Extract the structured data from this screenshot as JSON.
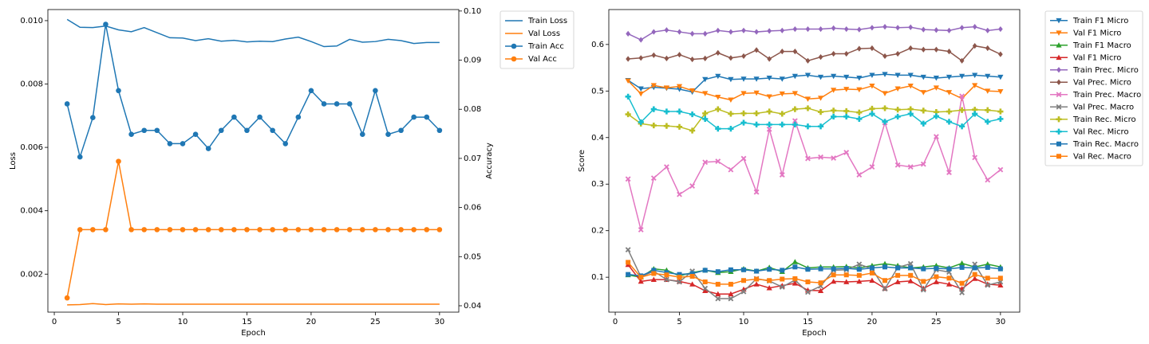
{
  "chart_data": [
    {
      "type": "line",
      "x": [
        1,
        2,
        3,
        4,
        5,
        6,
        7,
        8,
        9,
        10,
        11,
        12,
        13,
        14,
        15,
        16,
        17,
        18,
        19,
        20,
        21,
        22,
        23,
        24,
        25,
        26,
        27,
        28,
        29,
        30
      ],
      "xlabel": "Epoch",
      "xticks": [
        "0",
        "5",
        "10",
        "15",
        "20",
        "25",
        "30"
      ],
      "xlim": [
        -0.5,
        31.5
      ],
      "ylabel": "Loss",
      "ylim": [
        0.0008,
        0.01035
      ],
      "yticks": [
        "0.002",
        "0.004",
        "0.006",
        "0.008",
        "0.010"
      ],
      "ylabel_right": "Accuracy",
      "ylim_right": [
        0.0387,
        0.1003
      ],
      "yticks_right": [
        "0.04",
        "0.05",
        "0.06",
        "0.07",
        "0.08",
        "0.09",
        "0.10"
      ],
      "legend_position": "outside-right-top",
      "series": [
        {
          "name": "Train Loss",
          "axis": "left",
          "color": "#1f77b4",
          "marker": "none",
          "values": [
            0.01004,
            0.00979,
            0.00978,
            0.00983,
            0.00971,
            0.00965,
            0.00978,
            0.00962,
            0.00946,
            0.00945,
            0.00937,
            0.00943,
            0.00935,
            0.00938,
            0.00933,
            0.00935,
            0.00934,
            0.00942,
            0.00948,
            0.00934,
            0.00918,
            0.0092,
            0.00941,
            0.00932,
            0.00934,
            0.00941,
            0.00937,
            0.00928,
            0.00931,
            0.00931
          ]
        },
        {
          "name": "Val Loss",
          "axis": "left",
          "color": "#ff7f0e",
          "marker": "none",
          "values": [
            0.00103,
            0.00104,
            0.00107,
            0.00104,
            0.00106,
            0.00105,
            0.00106,
            0.00105,
            0.00105,
            0.00105,
            0.00105,
            0.00105,
            0.00105,
            0.00105,
            0.00105,
            0.00105,
            0.00105,
            0.00105,
            0.00105,
            0.00105,
            0.00105,
            0.00105,
            0.00105,
            0.00105,
            0.00105,
            0.00105,
            0.00105,
            0.00105,
            0.00105,
            0.00105
          ]
        },
        {
          "name": "Train Acc",
          "axis": "right",
          "color": "#1f77b4",
          "marker": "o",
          "values": [
            0.0811,
            0.0703,
            0.0783,
            0.0973,
            0.0838,
            0.0749,
            0.0757,
            0.0757,
            0.073,
            0.073,
            0.0749,
            0.072,
            0.0757,
            0.0784,
            0.0757,
            0.0784,
            0.0757,
            0.073,
            0.0784,
            0.0838,
            0.0811,
            0.0811,
            0.0811,
            0.0749,
            0.0838,
            0.0749,
            0.0757,
            0.0784,
            0.0784,
            0.0757
          ]
        },
        {
          "name": "Val Acc",
          "axis": "right",
          "color": "#ff7f0e",
          "marker": "o",
          "values": [
            0.0416,
            0.0555,
            0.0555,
            0.0555,
            0.0694,
            0.0555,
            0.0555,
            0.0555,
            0.0555,
            0.0555,
            0.0555,
            0.0555,
            0.0555,
            0.0555,
            0.0555,
            0.0555,
            0.0555,
            0.0555,
            0.0555,
            0.0555,
            0.0555,
            0.0555,
            0.0555,
            0.0555,
            0.0555,
            0.0555,
            0.0555,
            0.0555,
            0.0555,
            0.0555
          ]
        }
      ]
    },
    {
      "type": "line",
      "x": [
        1,
        2,
        3,
        4,
        5,
        6,
        7,
        8,
        9,
        10,
        11,
        12,
        13,
        14,
        15,
        16,
        17,
        18,
        19,
        20,
        21,
        22,
        23,
        24,
        25,
        26,
        27,
        28,
        29,
        30
      ],
      "xlabel": "Epoch",
      "xticks": [
        "0",
        "5",
        "10",
        "15",
        "20",
        "25",
        "30"
      ],
      "xlim": [
        -0.5,
        31.5
      ],
      "ylabel": "Score",
      "ylim": [
        0.025,
        0.675
      ],
      "yticks": [
        "0.1",
        "0.2",
        "0.3",
        "0.4",
        "0.5",
        "0.6"
      ],
      "legend_position": "outside-right-top",
      "series": [
        {
          "name": "Train F1 Micro",
          "color": "#1f77b4",
          "marker": "v",
          "values": [
            0.523,
            0.505,
            0.508,
            0.506,
            0.504,
            0.498,
            0.525,
            0.532,
            0.525,
            0.526,
            0.526,
            0.528,
            0.526,
            0.532,
            0.534,
            0.53,
            0.532,
            0.53,
            0.528,
            0.534,
            0.536,
            0.534,
            0.534,
            0.53,
            0.528,
            0.53,
            0.532,
            0.534,
            0.532,
            0.53
          ]
        },
        {
          "name": "Val F1 Micro",
          "color": "#ff7f0e",
          "marker": "v",
          "values": [
            0.522,
            0.494,
            0.512,
            0.507,
            0.51,
            0.501,
            0.495,
            0.487,
            0.481,
            0.495,
            0.496,
            0.488,
            0.494,
            0.495,
            0.483,
            0.485,
            0.502,
            0.504,
            0.503,
            0.511,
            0.495,
            0.505,
            0.511,
            0.497,
            0.507,
            0.497,
            0.484,
            0.512,
            0.5,
            0.499
          ]
        },
        {
          "name": "Train F1 Macro",
          "color": "#2ca02c",
          "marker": "^",
          "values": [
            0.105,
            0.1,
            0.118,
            0.115,
            0.103,
            0.11,
            0.115,
            0.11,
            0.112,
            0.118,
            0.113,
            0.121,
            0.112,
            0.133,
            0.12,
            0.122,
            0.122,
            0.123,
            0.12,
            0.125,
            0.129,
            0.125,
            0.12,
            0.122,
            0.125,
            0.12,
            0.13,
            0.122,
            0.128,
            0.122
          ]
        },
        {
          "name": "Val F1 Micro",
          "color": "#d62728",
          "marker": "^",
          "values": [
            0.127,
            0.091,
            0.095,
            0.095,
            0.091,
            0.085,
            0.071,
            0.064,
            0.064,
            0.074,
            0.085,
            0.077,
            0.082,
            0.087,
            0.072,
            0.071,
            0.091,
            0.09,
            0.091,
            0.093,
            0.076,
            0.09,
            0.092,
            0.076,
            0.09,
            0.085,
            0.075,
            0.097,
            0.085,
            0.083
          ]
        },
        {
          "name": "Train Prec. Micro",
          "color": "#9467bd",
          "marker": "D",
          "values": [
            0.623,
            0.61,
            0.627,
            0.631,
            0.627,
            0.623,
            0.623,
            0.63,
            0.627,
            0.63,
            0.627,
            0.629,
            0.63,
            0.633,
            0.633,
            0.633,
            0.635,
            0.633,
            0.632,
            0.636,
            0.638,
            0.636,
            0.637,
            0.632,
            0.631,
            0.63,
            0.636,
            0.638,
            0.63,
            0.633
          ]
        },
        {
          "name": "Val Prec. Micro",
          "color": "#8c564b",
          "marker": "D",
          "values": [
            0.569,
            0.571,
            0.577,
            0.57,
            0.578,
            0.568,
            0.57,
            0.582,
            0.571,
            0.575,
            0.588,
            0.569,
            0.585,
            0.585,
            0.565,
            0.573,
            0.58,
            0.58,
            0.591,
            0.592,
            0.575,
            0.58,
            0.592,
            0.589,
            0.589,
            0.585,
            0.565,
            0.597,
            0.592,
            0.579
          ]
        },
        {
          "name": "Train Prec. Macro",
          "color": "#e377c2",
          "marker": "X",
          "values": [
            0.311,
            0.202,
            0.313,
            0.337,
            0.278,
            0.296,
            0.347,
            0.349,
            0.331,
            0.355,
            0.283,
            0.418,
            0.32,
            0.436,
            0.355,
            0.358,
            0.356,
            0.368,
            0.32,
            0.337,
            0.432,
            0.341,
            0.337,
            0.343,
            0.402,
            0.325,
            0.489,
            0.357,
            0.309,
            0.331
          ]
        },
        {
          "name": "Val Prec. Macro",
          "color": "#7f7f7f",
          "marker": "X",
          "values": [
            0.159,
            0.101,
            0.113,
            0.095,
            0.09,
            0.113,
            0.076,
            0.054,
            0.054,
            0.069,
            0.097,
            0.092,
            0.079,
            0.094,
            0.068,
            0.081,
            0.115,
            0.116,
            0.128,
            0.118,
            0.075,
            0.121,
            0.129,
            0.073,
            0.116,
            0.111,
            0.067,
            0.128,
            0.083,
            0.09
          ]
        },
        {
          "name": "Train Rec. Micro",
          "color": "#bcbd22",
          "marker": "P",
          "values": [
            0.45,
            0.43,
            0.426,
            0.425,
            0.423,
            0.415,
            0.452,
            0.461,
            0.451,
            0.452,
            0.452,
            0.456,
            0.451,
            0.461,
            0.463,
            0.455,
            0.458,
            0.457,
            0.454,
            0.462,
            0.463,
            0.46,
            0.461,
            0.458,
            0.455,
            0.456,
            0.459,
            0.46,
            0.459,
            0.456
          ]
        },
        {
          "name": "Val Rec. Micro",
          "color": "#17becf",
          "marker": "P",
          "values": [
            0.488,
            0.433,
            0.461,
            0.456,
            0.456,
            0.45,
            0.44,
            0.419,
            0.419,
            0.432,
            0.428,
            0.428,
            0.428,
            0.428,
            0.424,
            0.424,
            0.445,
            0.445,
            0.44,
            0.451,
            0.434,
            0.445,
            0.451,
            0.43,
            0.446,
            0.434,
            0.424,
            0.451,
            0.434,
            0.44
          ]
        },
        {
          "name": "Train Rec. Macro",
          "color": "#1f77b4",
          "marker": "s",
          "values": [
            0.106,
            0.103,
            0.115,
            0.11,
            0.106,
            0.108,
            0.115,
            0.112,
            0.116,
            0.116,
            0.113,
            0.117,
            0.115,
            0.122,
            0.117,
            0.118,
            0.118,
            0.119,
            0.117,
            0.12,
            0.122,
            0.12,
            0.12,
            0.118,
            0.119,
            0.118,
            0.121,
            0.12,
            0.121,
            0.118
          ]
        },
        {
          "name": "Val Rec. Macro",
          "color": "#ff7f0e",
          "marker": "s",
          "values": [
            0.132,
            0.1,
            0.108,
            0.105,
            0.1,
            0.102,
            0.09,
            0.085,
            0.085,
            0.093,
            0.096,
            0.093,
            0.096,
            0.097,
            0.09,
            0.088,
            0.105,
            0.105,
            0.104,
            0.109,
            0.093,
            0.104,
            0.104,
            0.091,
            0.101,
            0.098,
            0.087,
            0.106,
            0.098,
            0.098
          ]
        }
      ]
    }
  ]
}
